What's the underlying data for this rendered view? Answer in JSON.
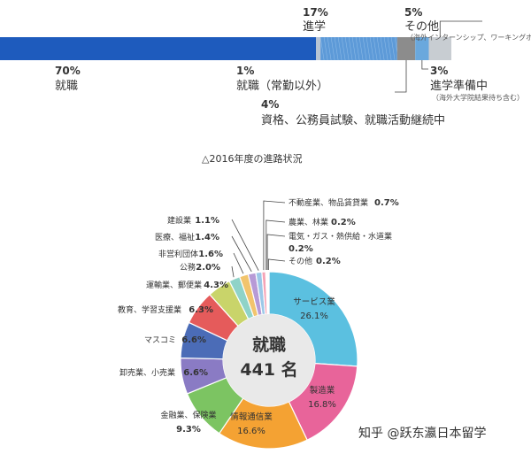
{
  "chart_data": [
    {
      "type": "bar",
      "orientation": "stacked-horizontal",
      "categories": [
        "就職",
        "就職（常勤以外）",
        "進学",
        "資格、公務員試験、就職活動継続中",
        "進学準備中",
        "その他"
      ],
      "values": [
        70,
        1,
        17,
        4,
        3,
        5
      ],
      "units": "%",
      "labels": [
        {
          "pct": "70%",
          "text": "就職"
        },
        {
          "pct": "1%",
          "text": "就職（常勤以外）"
        },
        {
          "pct": "17%",
          "text": "進学"
        },
        {
          "pct": "4%",
          "text": "資格、公務員試験、就職活動継続中"
        },
        {
          "pct": "3%",
          "text": "進学準備中",
          "note": "（海外大学院結果待ち含む）"
        },
        {
          "pct": "5%",
          "text": "その他",
          "note": "（海外インターンシップ、ワーキングホリデーなど）"
        }
      ],
      "colors": [
        "#1e5bbd",
        "#b8c4d4",
        "#5d9ad8",
        "#8c8c8c",
        "#6aa8dd",
        "#c8cdd2"
      ],
      "caption": "△2016年度の進路状況"
    },
    {
      "type": "pie",
      "style": "donut",
      "center": {
        "title": "就職",
        "count": "441 名"
      },
      "slices": [
        {
          "label": "サービス業",
          "value": 26.1,
          "pct": "26.1%",
          "color": "#5bc0e0"
        },
        {
          "label": "製造業",
          "value": 16.8,
          "pct": "16.8%",
          "color": "#e8649a"
        },
        {
          "label": "情報通信業",
          "value": 16.6,
          "pct": "16.6%",
          "color": "#f4a233"
        },
        {
          "label": "金融業、保険業",
          "value": 9.3,
          "pct": "9.3%",
          "color": "#7cc462"
        },
        {
          "label": "卸売業、小売業",
          "value": 6.6,
          "pct": "6.6%",
          "color": "#8a7bc4"
        },
        {
          "label": "マスコミ",
          "value": 6.6,
          "pct": "6.6%",
          "color": "#4b6cb7"
        },
        {
          "label": "教育、学習支援業",
          "value": 6.3,
          "pct": "6.3%",
          "color": "#e55b5b"
        },
        {
          "label": "運輸業、郵便業",
          "value": 4.3,
          "pct": "4.3%",
          "color": "#c9d46a"
        },
        {
          "label": "公務",
          "value": 2.0,
          "pct": "2.0%",
          "color": "#8fd3c8"
        },
        {
          "label": "非営利団体",
          "value": 1.6,
          "pct": "1.6%",
          "color": "#f2c46d"
        },
        {
          "label": "医療、福祉",
          "value": 1.4,
          "pct": "1.4%",
          "color": "#b79ad6"
        },
        {
          "label": "建設業",
          "value": 1.1,
          "pct": "1.1%",
          "color": "#9cc8e8"
        },
        {
          "label": "不動産業、物品賃貸業",
          "value": 0.7,
          "pct": "0.7%",
          "color": "#f5a3b6"
        },
        {
          "label": "農業、林業",
          "value": 0.2,
          "pct": "0.2%",
          "color": "#a8d8a0"
        },
        {
          "label": "電気・ガス・熱供給・水道業",
          "value": 0.2,
          "pct": "0.2%",
          "color": "#d9b48a"
        },
        {
          "label": "その他",
          "value": 0.2,
          "pct": "0.2%",
          "color": "#cccccc"
        }
      ]
    }
  ],
  "watermark": "知乎 @跃东瀛日本留学"
}
